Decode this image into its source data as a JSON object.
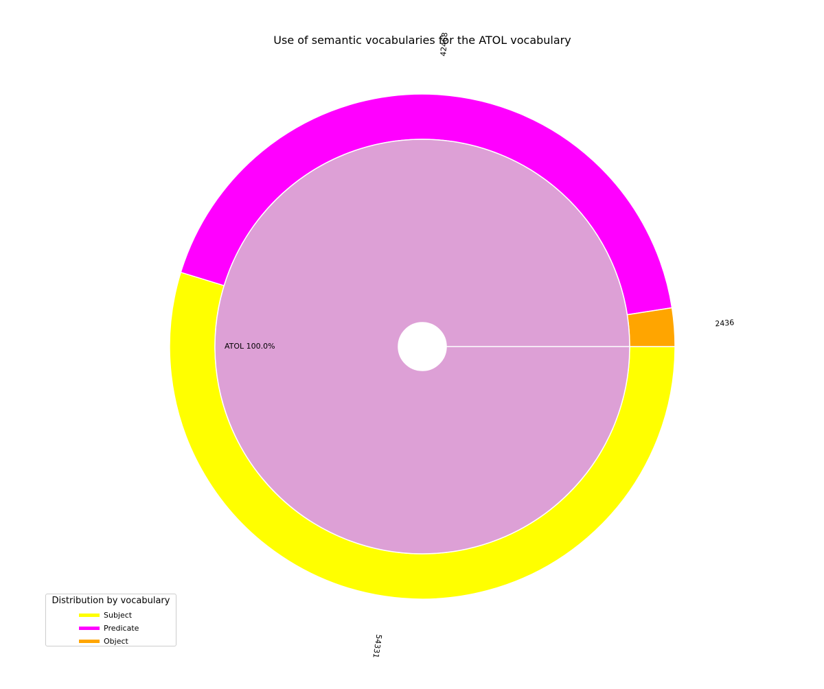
{
  "chart_data": {
    "type": "pie",
    "title": "Use of semantic vocabularies for the ATOL vocabulary",
    "outer_ring": {
      "categories": [
        "Subject",
        "Predicate",
        "Object"
      ],
      "values": [
        54331,
        42468,
        2436
      ],
      "labels": [
        "54331",
        "42468",
        "2436"
      ],
      "colors": [
        "#ffff00",
        "#ff00ff",
        "#ffa500"
      ]
    },
    "inner_ring": {
      "categories": [
        "ATOL"
      ],
      "values": [
        100.0
      ],
      "label": "ATOL  100.0%",
      "colors": [
        "#dda0d6"
      ]
    },
    "legend": {
      "title": "Distribution by vocabulary",
      "placement": "lower-left",
      "entries": [
        "Subject",
        "Predicate",
        "Object"
      ]
    },
    "grid": false
  }
}
